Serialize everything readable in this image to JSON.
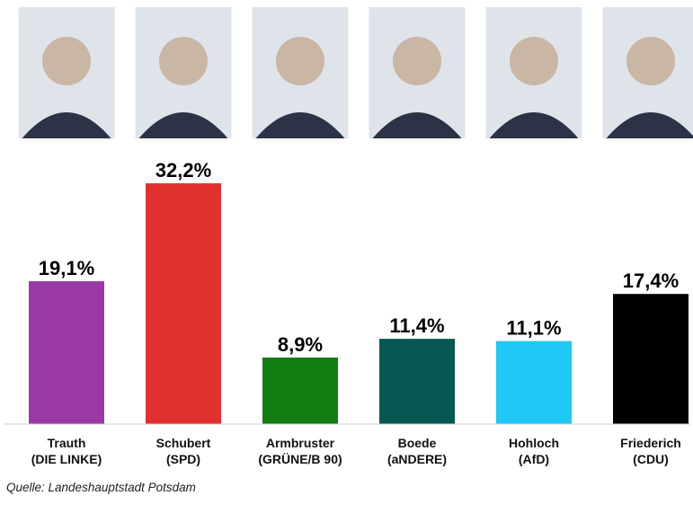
{
  "chart_data": {
    "type": "bar",
    "title": "",
    "xlabel": "",
    "ylabel": "",
    "ylim": [
      0,
      32.2
    ],
    "grid": false,
    "categories": [
      {
        "name": "Trauth",
        "party": "(DIE LINKE)",
        "value": 19.1,
        "label": "19,1%",
        "color": "#9b39a6"
      },
      {
        "name": "Schubert",
        "party": "(SPD)",
        "value": 32.2,
        "label": "32,2%",
        "color": "#e0312f"
      },
      {
        "name": "Armbruster",
        "party": "(GRÜNE/B 90)",
        "value": 8.9,
        "label": "8,9%",
        "color": "#137d13"
      },
      {
        "name": "Boede",
        "party": "(aNDERE)",
        "value": 11.4,
        "label": "11,4%",
        "color": "#075852"
      },
      {
        "name": "Hohloch",
        "party": "(AfD)",
        "value": 11.1,
        "label": "11,1%",
        "color": "#1fc8f5"
      },
      {
        "name": "Friederich",
        "party": "(CDU)",
        "value": 17.4,
        "label": "17,4%",
        "color": "#000000"
      }
    ]
  },
  "source": "Quelle: Landeshauptstadt Potsdam"
}
